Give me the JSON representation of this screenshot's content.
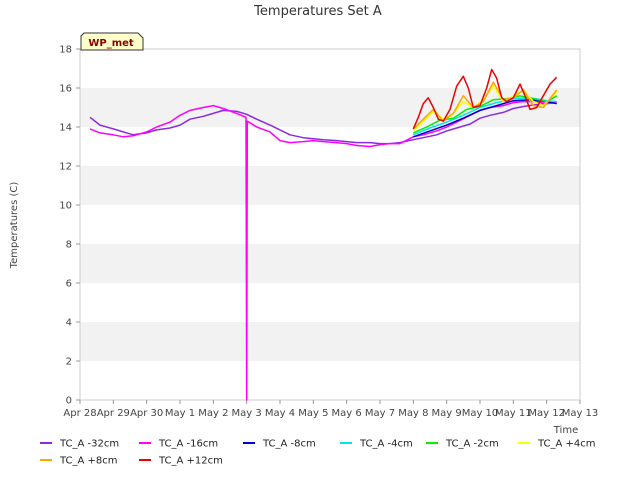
{
  "chart_data": {
    "type": "line",
    "title": "Temperatures Set A",
    "xlabel": "Time",
    "ylabel": "Temperatures (C)",
    "badge": "WP_met",
    "ylim": [
      0,
      18
    ],
    "yticks": [
      0,
      2,
      4,
      6,
      8,
      10,
      12,
      14,
      16,
      18
    ],
    "xlim": [
      0,
      15
    ],
    "x_tick_labels": [
      "Apr 28",
      "Apr 29",
      "Apr 30",
      "May 1",
      "May 2",
      "May 3",
      "May 4",
      "May 5",
      "May 6",
      "May 7",
      "May 8",
      "May 9",
      "May 10",
      "May 11",
      "May 12",
      "May 13"
    ],
    "grid": "horizontal bands",
    "legend_position": "bottom",
    "series": [
      {
        "name": "TC_A -32cm",
        "color": "#8a2be2",
        "x": [
          0.3,
          0.6,
          1.0,
          1.3,
          1.6,
          2.0,
          2.3,
          2.7,
          3.0,
          3.3,
          3.7,
          4.0,
          4.3,
          4.7,
          5.0,
          5.3,
          5.7,
          6.0,
          6.3,
          6.7,
          7.0,
          7.3,
          7.7,
          8.0,
          8.3,
          8.7,
          9.0,
          9.3,
          9.6,
          10.0,
          10.3,
          10.7,
          11.0,
          11.3,
          11.7,
          12.0,
          12.3,
          12.7,
          13.0,
          13.3,
          13.7,
          14.0,
          14.3
        ],
        "y": [
          14.5,
          14.1,
          13.9,
          13.75,
          13.6,
          13.7,
          13.85,
          13.95,
          14.1,
          14.4,
          14.55,
          14.7,
          14.85,
          14.8,
          14.65,
          14.4,
          14.1,
          13.85,
          13.6,
          13.45,
          13.4,
          13.35,
          13.3,
          13.25,
          13.2,
          13.2,
          13.15,
          13.15,
          13.2,
          13.35,
          13.45,
          13.6,
          13.8,
          13.95,
          14.15,
          14.45,
          14.6,
          14.75,
          14.95,
          15.05,
          15.15,
          15.2,
          15.25
        ]
      },
      {
        "name": "TC_A -16cm",
        "color": "#ff00ff",
        "x": [
          0.3,
          0.6,
          1.0,
          1.3,
          1.6,
          2.0,
          2.3,
          2.7,
          3.0,
          3.3,
          3.7,
          4.0,
          4.3,
          4.7,
          4.98,
          5.0,
          5.02,
          5.3,
          5.7,
          6.0,
          6.3,
          6.7,
          7.0,
          7.3,
          7.7,
          8.0,
          8.3,
          8.7,
          9.0,
          9.3,
          9.6,
          10.0,
          10.3,
          10.7,
          11.0,
          11.3,
          11.7,
          12.0,
          12.3,
          12.7,
          13.0,
          13.3,
          13.7,
          14.0,
          14.3
        ],
        "y": [
          13.9,
          13.7,
          13.6,
          13.5,
          13.55,
          13.75,
          14.0,
          14.25,
          14.6,
          14.85,
          15.0,
          15.1,
          14.95,
          14.7,
          14.5,
          0,
          14.3,
          14.0,
          13.75,
          13.3,
          13.2,
          13.25,
          13.3,
          13.25,
          13.2,
          13.15,
          13.05,
          13.0,
          13.1,
          13.15,
          13.15,
          13.5,
          13.6,
          13.8,
          14.0,
          14.25,
          14.6,
          14.85,
          15.0,
          15.1,
          15.25,
          15.3,
          15.3,
          15.2,
          15.3
        ]
      },
      {
        "name": "TC_A -8cm",
        "color": "#0000cd",
        "x": [
          10.0,
          10.5,
          11.0,
          11.5,
          12.0,
          12.5,
          13.0,
          13.5,
          14.0,
          14.3
        ],
        "y": [
          13.5,
          13.8,
          14.1,
          14.45,
          14.85,
          15.1,
          15.35,
          15.4,
          15.3,
          15.2
        ]
      },
      {
        "name": "TC_A -4cm",
        "color": "#00e5ee",
        "x": [
          10.0,
          10.5,
          11.0,
          11.5,
          12.0,
          12.5,
          13.0,
          13.5,
          14.0,
          14.3
        ],
        "y": [
          13.6,
          13.95,
          14.25,
          14.6,
          15.0,
          15.25,
          15.45,
          15.5,
          15.35,
          15.3
        ]
      },
      {
        "name": "TC_A -2cm",
        "color": "#00ee00",
        "x": [
          10.0,
          10.4,
          10.8,
          11.2,
          11.6,
          12.0,
          12.4,
          12.8,
          13.2,
          13.6,
          14.0,
          14.3
        ],
        "y": [
          13.7,
          14.0,
          14.35,
          14.45,
          14.9,
          15.05,
          15.4,
          15.45,
          15.6,
          15.45,
          15.3,
          15.6
        ]
      },
      {
        "name": "TC_A +4cm",
        "color": "#ffff00",
        "x": [
          10.0,
          10.3,
          10.6,
          10.9,
          11.2,
          11.5,
          11.8,
          12.1,
          12.4,
          12.7,
          13.0,
          13.3,
          13.6,
          13.9,
          14.3
        ],
        "y": [
          13.8,
          14.3,
          14.8,
          14.4,
          14.7,
          15.3,
          15.0,
          15.4,
          16.1,
          15.3,
          15.6,
          15.9,
          15.3,
          15.1,
          15.8
        ]
      },
      {
        "name": "TC_A +8cm",
        "color": "#ffa500",
        "x": [
          10.0,
          10.3,
          10.6,
          10.9,
          11.2,
          11.5,
          11.8,
          12.1,
          12.4,
          12.7,
          13.0,
          13.3,
          13.6,
          13.9,
          14.3
        ],
        "y": [
          13.9,
          14.4,
          14.9,
          14.3,
          14.7,
          15.6,
          15.0,
          15.3,
          16.3,
          15.4,
          15.5,
          15.9,
          15.1,
          15.0,
          15.9
        ]
      },
      {
        "name": "TC_A +12cm",
        "color": "#ee0000",
        "x": [
          10.0,
          10.15,
          10.3,
          10.45,
          10.6,
          10.75,
          10.9,
          11.1,
          11.3,
          11.5,
          11.65,
          11.8,
          12.0,
          12.2,
          12.35,
          12.5,
          12.65,
          12.8,
          13.0,
          13.2,
          13.35,
          13.5,
          13.7,
          13.9,
          14.1,
          14.3
        ],
        "y": [
          13.9,
          14.5,
          15.2,
          15.5,
          15.0,
          14.4,
          14.3,
          14.9,
          16.1,
          16.6,
          16.0,
          15.0,
          15.1,
          16.0,
          16.95,
          16.5,
          15.5,
          15.3,
          15.5,
          16.2,
          15.6,
          14.9,
          15.0,
          15.6,
          16.2,
          16.55
        ]
      }
    ]
  }
}
